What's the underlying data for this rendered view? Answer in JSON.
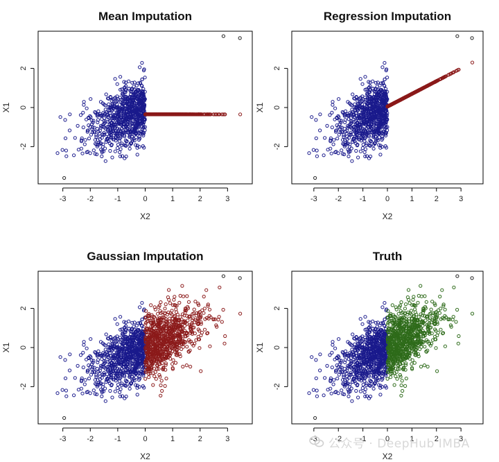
{
  "figure": {
    "watermark_text": "公众号 · DeepHub IMBA"
  },
  "chart_data": [
    {
      "type": "scatter",
      "title": "Mean Imputation",
      "xlabel": "X2",
      "ylabel": "X1",
      "xlim": [
        -3.9,
        3.9
      ],
      "ylim": [
        -3.9,
        3.9
      ],
      "xticks": [
        -3,
        -2,
        -1,
        0,
        1,
        2,
        3
      ],
      "yticks": [
        -2,
        0,
        2
      ],
      "grid": false,
      "imputation": "mean",
      "series": [
        {
          "values_description": "observed",
          "color": "#1a1a8c",
          "n": 850,
          "x_range": [
            -3.5,
            0
          ],
          "correlation": 0.6
        },
        {
          "values_description": "imputed",
          "color": "#8b1a1a",
          "n": 850,
          "x_range": [
            0,
            3.5
          ],
          "constant_y": -0.35
        }
      ],
      "outliers": [
        {
          "x": 2.85,
          "y": 3.65
        },
        {
          "x": 3.45,
          "y": 3.55
        },
        {
          "x": -2.95,
          "y": -3.6
        }
      ]
    },
    {
      "type": "scatter",
      "title": "Regression Imputation",
      "xlabel": "X2",
      "ylabel": "X1",
      "xlim": [
        -3.9,
        3.9
      ],
      "ylim": [
        -3.9,
        3.9
      ],
      "xticks": [
        -3,
        -2,
        -1,
        0,
        1,
        2,
        3
      ],
      "yticks": [
        -2,
        0,
        2
      ],
      "grid": false,
      "imputation": "regression",
      "series": [
        {
          "values_description": "observed",
          "color": "#1a1a8c",
          "n": 850,
          "x_range": [
            -3.5,
            0
          ],
          "correlation": 0.6
        },
        {
          "values_description": "imputed",
          "color": "#8b1a1a",
          "n": 850,
          "x_range": [
            0,
            3.5
          ],
          "line": {
            "intercept": 0.05,
            "slope": 0.65
          }
        }
      ],
      "outliers": [
        {
          "x": 2.85,
          "y": 3.65
        },
        {
          "x": 3.45,
          "y": 3.55
        },
        {
          "x": -2.95,
          "y": -3.6
        }
      ]
    },
    {
      "type": "scatter",
      "title": "Gaussian Imputation",
      "xlabel": "X2",
      "ylabel": "X1",
      "xlim": [
        -3.9,
        3.9
      ],
      "ylim": [
        -3.9,
        3.9
      ],
      "xticks": [
        -3,
        -2,
        -1,
        0,
        1,
        2,
        3
      ],
      "yticks": [
        -2,
        0,
        2
      ],
      "grid": false,
      "imputation": "gaussian",
      "series": [
        {
          "values_description": "observed",
          "color": "#1a1a8c",
          "n": 850,
          "x_range": [
            -3.5,
            0
          ],
          "correlation": 0.6
        },
        {
          "values_description": "imputed",
          "color": "#8b1a1a",
          "n": 850,
          "x_range": [
            0,
            3.5
          ],
          "line": {
            "intercept": 0.05,
            "slope": 0.65
          },
          "noise_sd": 0.8
        }
      ],
      "outliers": [
        {
          "x": 2.85,
          "y": 3.65
        },
        {
          "x": 3.45,
          "y": 3.55
        },
        {
          "x": -2.95,
          "y": -3.6
        }
      ]
    },
    {
      "type": "scatter",
      "title": "Truth",
      "xlabel": "X2",
      "ylabel": "X1",
      "xlim": [
        -3.9,
        3.9
      ],
      "ylim": [
        -3.9,
        3.9
      ],
      "xticks": [
        -3,
        -2,
        -1,
        0,
        1,
        2,
        3
      ],
      "yticks": [
        -2,
        0,
        2
      ],
      "grid": false,
      "imputation": "truth",
      "series": [
        {
          "values_description": "observed",
          "color": "#1a1a8c",
          "n": 850,
          "x_range": [
            -3.5,
            0
          ],
          "correlation": 0.6
        },
        {
          "values_description": "true values",
          "color": "#2e6b1a",
          "n": 850,
          "x_range": [
            0,
            3.5
          ],
          "line": {
            "intercept": 0.05,
            "slope": 0.65
          },
          "noise_sd": 0.8
        }
      ],
      "outliers": [
        {
          "x": 2.85,
          "y": 3.65
        },
        {
          "x": 3.45,
          "y": 3.55
        },
        {
          "x": -2.95,
          "y": -3.6
        }
      ]
    }
  ]
}
